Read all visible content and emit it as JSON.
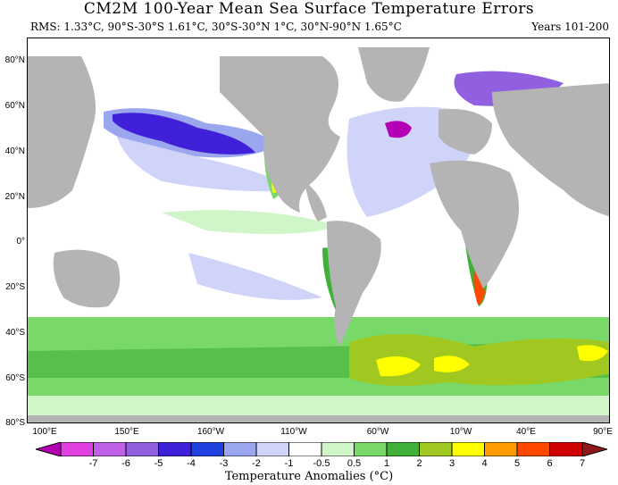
{
  "title": "CM2M 100-Year Mean Sea Surface Temperature Errors",
  "subtitle": "RMS: 1.33°C, 90°S-30°S 1.61°C, 30°S-30°N 1°C, 30°N-90°N 1.65°C",
  "years": "Years 101-200",
  "lat_labels": [
    "80°N",
    "60°N",
    "40°N",
    "20°N",
    "0°",
    "20°S",
    "40°S",
    "60°S",
    "80°S"
  ],
  "lon_labels": [
    "100°E",
    "150°E",
    "160°W",
    "110°W",
    "60°W",
    "10°W",
    "40°E",
    "90°E"
  ],
  "colorbar": {
    "title": "Temperature Anomalies (°C)",
    "tick_labels": [
      "-7",
      "-6",
      "-5",
      "-4",
      "-3",
      "-2",
      "-1",
      "-0.5",
      "0.5",
      "1",
      "2",
      "3",
      "4",
      "5",
      "6",
      "7"
    ],
    "colors": [
      "#b400b4",
      "#e040e0",
      "#c060e8",
      "#9060e0",
      "#4020d8",
      "#2040e0",
      "#9aa6ee",
      "#cfd4f8",
      "#ffffff",
      "#d0f5c8",
      "#78d868",
      "#40b038",
      "#a0c820",
      "#ffff00",
      "#ff9c00",
      "#ff4800",
      "#d00000",
      "#901818"
    ]
  },
  "land_color": "#b4b4b4"
}
